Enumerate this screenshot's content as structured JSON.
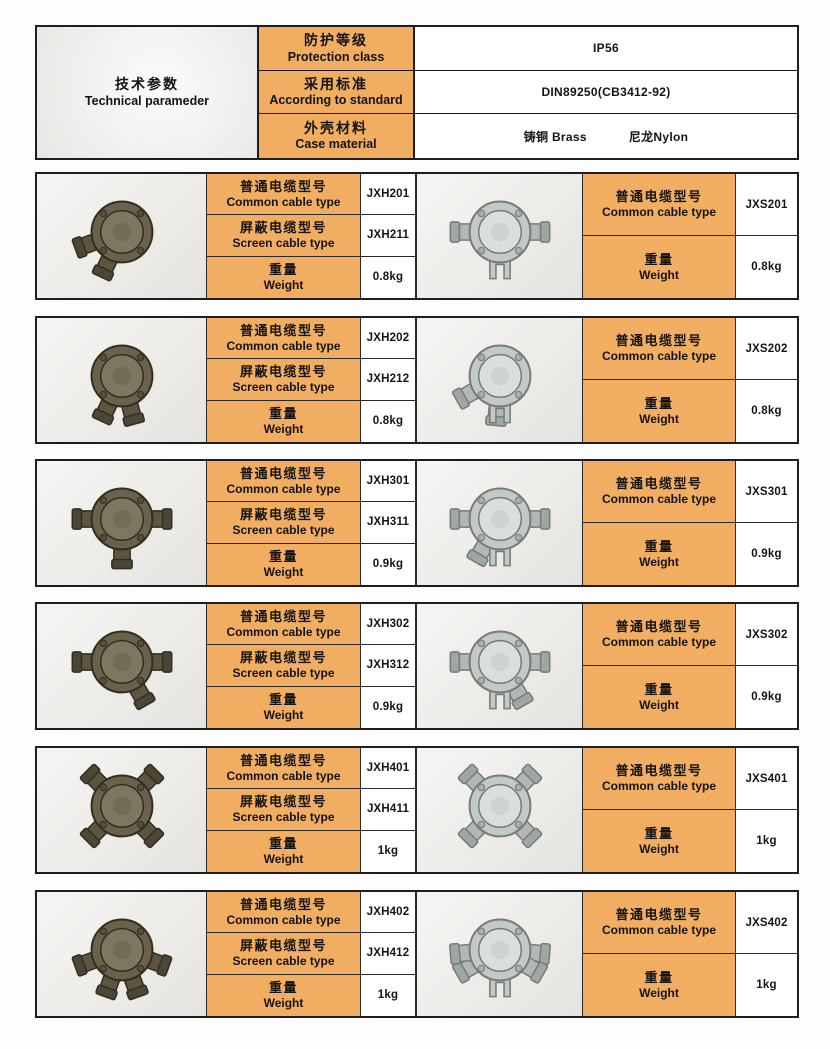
{
  "colors": {
    "orange": "#f1ad62",
    "border": "#1e1e1e",
    "dark_box": {
      "body": "#6a624d",
      "lid": "#7e7660",
      "port": "#5c5543",
      "gland": "#4c4636",
      "bolt": "#554f3d",
      "stroke": "#332f20"
    },
    "light_box": {
      "body": "#c3c9c5",
      "lid": "#dbdfdc",
      "port": "#b2b9b4",
      "gland": "#9fa7a2",
      "bolt": "#a9b0ab",
      "stroke": "#767c78"
    }
  },
  "header": {
    "title_zh": "技术参数",
    "title_en": "Technical parameder",
    "rows": [
      {
        "label_zh": "防护等级",
        "label_en": "Protection class",
        "value": "IP56",
        "value2": ""
      },
      {
        "label_zh": "采用标准",
        "label_en": "According to standard",
        "value": "DIN89250(CB3412-92)",
        "value2": ""
      },
      {
        "label_zh": "外壳材料",
        "label_en": "Case material",
        "value": "铸铜 Brass",
        "value2": "尼龙Nylon"
      }
    ]
  },
  "row_labels": {
    "common_zh": "普通电缆型号",
    "common_en": "Common cable type",
    "screen_zh": "屏蔽电缆型号",
    "screen_en": "Screen cable type",
    "weight_zh": "重量",
    "weight_en": "Weight"
  },
  "products": [
    {
      "common_model": "JXH201",
      "screen_model": "JXH211",
      "weight": "0.8kg",
      "s_common_model": "JXS201",
      "s_weight": "0.8kg",
      "left_entries": [
        115,
        160
      ],
      "left_legs": false,
      "right_entries": [
        0,
        180
      ],
      "right_legs": true
    },
    {
      "common_model": "JXH202",
      "screen_model": "JXH212",
      "weight": "0.8kg",
      "s_common_model": "JXS202",
      "s_weight": "0.8kg",
      "left_entries": [
        75,
        115
      ],
      "left_legs": false,
      "right_entries": [
        95,
        150
      ],
      "right_legs": true
    },
    {
      "common_model": "JXH301",
      "screen_model": "JXH311",
      "weight": "0.9kg",
      "s_common_model": "JXS301",
      "s_weight": "0.9kg",
      "left_entries": [
        0,
        90,
        180
      ],
      "left_legs": false,
      "right_entries": [
        0,
        120,
        180
      ],
      "right_legs": true
    },
    {
      "common_model": "JXH302",
      "screen_model": "JXH312",
      "weight": "0.9kg",
      "s_common_model": "JXS302",
      "s_weight": "0.9kg",
      "left_entries": [
        0,
        60,
        180
      ],
      "left_legs": false,
      "right_entries": [
        0,
        60,
        180
      ],
      "right_legs": true
    },
    {
      "common_model": "JXH401",
      "screen_model": "JXH411",
      "weight": "1kg",
      "s_common_model": "JXS401",
      "s_weight": "1kg",
      "left_entries": [
        45,
        135,
        225,
        315
      ],
      "left_legs": false,
      "right_entries": [
        45,
        135,
        225,
        315
      ],
      "right_legs": false
    },
    {
      "common_model": "JXH402",
      "screen_model": "JXH412",
      "weight": "1kg",
      "s_common_model": "JXS402",
      "s_weight": "1kg",
      "left_entries": [
        20,
        70,
        110,
        160
      ],
      "left_legs": false,
      "right_entries": [
        5,
        30,
        150,
        175
      ],
      "right_legs": true
    }
  ]
}
